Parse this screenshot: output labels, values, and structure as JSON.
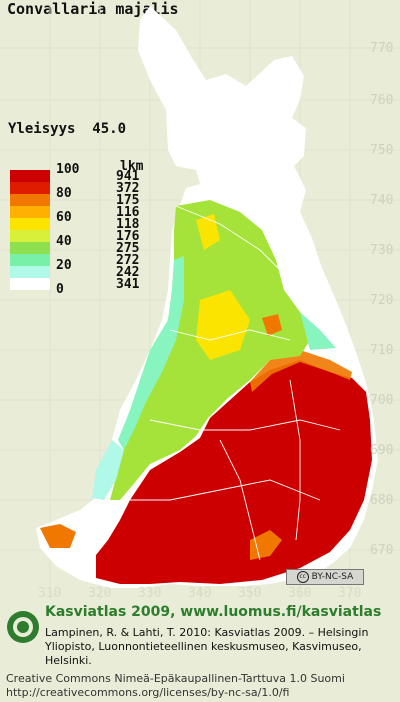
{
  "title": "Convallaria majalis",
  "frequency": {
    "label": "Yleisyys",
    "value": "45.0"
  },
  "legend": {
    "items": [
      {
        "label": "100",
        "color": "#cc0000"
      },
      {
        "label": "80",
        "color": "#f07800"
      },
      {
        "label": "60",
        "color": "#fbe400"
      },
      {
        "label": "40",
        "color": "#a6e33a"
      },
      {
        "label": "20",
        "color": "#88f5c0"
      },
      {
        "label": "0",
        "color": "#ffffff"
      }
    ],
    "swatch_colors": [
      "#cc0000",
      "#e01c00",
      "#f07800",
      "#ffb000",
      "#fbe400",
      "#d8f03a",
      "#8ee050",
      "#78f0a8",
      "#b0f8e8",
      "#ffffff"
    ],
    "lkm_label": "lkm",
    "lkm_values": [
      "941",
      "372",
      "175",
      "116",
      "118",
      "176",
      "275",
      "272",
      "242",
      "341"
    ]
  },
  "grid_y_labels": [
    "770",
    "760",
    "750",
    "740",
    "730",
    "720",
    "710",
    "700",
    "690",
    "680",
    "670"
  ],
  "grid_x_labels": [
    "310",
    "320",
    "330",
    "340",
    "350",
    "360",
    "370"
  ],
  "cc_badge": "BY-NC-SA",
  "footer": {
    "title": "Kasviatlas 2009, www.luomus.fi/kasviatlas",
    "citation": "Lampinen, R. & Lahti, T. 2010: Kasviatlas 2009. – Helsingin Yliopisto, Luonnontieteellinen keskusmuseo, Kasvimuseo, Helsinki.",
    "license_1": "Creative Commons Nimeä-Epäkaupallinen-Tarttuva 1.0 Suomi",
    "license_2": "http://creativecommons.org/licenses/by-nc-sa/1.0/fi"
  },
  "colors": {
    "background": "#e9ecd6",
    "land": "#ffffff",
    "boundary": "#ffffff"
  }
}
